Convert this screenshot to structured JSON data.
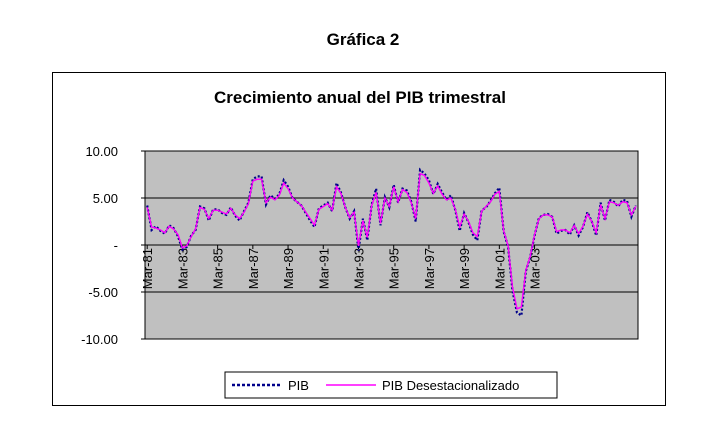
{
  "figure_title": "Gráfica 2",
  "chart_data": {
    "type": "line",
    "title": "Crecimiento anual del PIB trimestral",
    "xlabel": "",
    "ylabel": "",
    "ylim": [
      -10,
      10
    ],
    "yticks": [
      10,
      5,
      0,
      -5,
      -10
    ],
    "ytick_labels": [
      "10.00",
      "5.00",
      "-",
      "-5.00",
      "-10.00"
    ],
    "xtick_labels": [
      "Mar-81",
      "Mar-83",
      "Mar-85",
      "Mar-87",
      "Mar-89",
      "Mar-91",
      "Mar-93",
      "Mar-95",
      "Mar-97",
      "Mar-99",
      "Mar-01",
      "Mar-03"
    ],
    "x_start": "Mar-81",
    "x_end": "Dec-04",
    "frequency": "quarterly",
    "grid": "horizontal",
    "legend_position": "bottom",
    "series": [
      {
        "name": "PIB",
        "color": "#00008b",
        "style": "dotted",
        "values": [
          4.2,
          1.6,
          2.0,
          1.5,
          1.2,
          2.1,
          1.8,
          0.9,
          -0.5,
          -0.2,
          1.0,
          1.6,
          4.1,
          3.9,
          2.6,
          3.8,
          3.8,
          3.4,
          3.2,
          4.0,
          3.1,
          2.6,
          3.6,
          4.5,
          7.0,
          7.3,
          7.3,
          4.3,
          5.3,
          4.9,
          5.4,
          6.9,
          6.2,
          5.0,
          4.6,
          4.2,
          3.4,
          2.6,
          1.9,
          3.9,
          4.2,
          4.5,
          3.6,
          6.6,
          5.6,
          4.0,
          2.8,
          3.6,
          -0.6,
          2.8,
          0.5,
          4.3,
          6.0,
          2.1,
          5.1,
          4.0,
          6.4,
          4.5,
          6.0,
          5.8,
          4.6,
          2.5,
          8.0,
          7.6,
          6.9,
          5.4,
          6.5,
          5.6,
          4.8,
          5.3,
          3.7,
          1.5,
          3.4,
          2.4,
          1.1,
          0.5,
          3.7,
          4.0,
          4.7,
          5.5,
          6.1,
          1.4,
          -0.2,
          -4.9,
          -7.2,
          -7.5,
          -2.8,
          -1.3,
          1.0,
          2.9,
          3.2,
          3.3,
          3.0,
          1.2,
          1.5,
          1.6,
          1.1,
          2.1,
          1.0,
          1.9,
          3.5,
          2.5,
          1.0,
          4.5,
          2.6,
          4.8,
          4.6,
          4.1,
          4.8,
          4.7,
          3.0,
          4.2
        ]
      },
      {
        "name": "PIB Desestacionalizado",
        "color": "#ff00ff",
        "style": "solid",
        "values": [
          4.0,
          1.9,
          1.8,
          1.6,
          1.3,
          2.0,
          1.7,
          1.1,
          -0.3,
          -0.1,
          0.9,
          1.7,
          4.0,
          3.8,
          2.8,
          3.7,
          3.7,
          3.5,
          3.3,
          3.9,
          3.2,
          2.8,
          3.5,
          4.4,
          6.8,
          7.0,
          7.0,
          4.5,
          5.1,
          4.8,
          5.3,
          6.6,
          6.0,
          5.0,
          4.6,
          4.2,
          3.5,
          2.8,
          2.1,
          3.8,
          4.1,
          4.4,
          3.7,
          6.2,
          5.5,
          4.0,
          2.9,
          3.5,
          -0.1,
          2.6,
          0.8,
          4.2,
          5.6,
          2.3,
          5.0,
          4.1,
          6.2,
          4.6,
          5.9,
          5.6,
          4.5,
          2.8,
          7.6,
          7.4,
          6.6,
          5.5,
          6.3,
          5.4,
          4.8,
          5.0,
          3.8,
          1.9,
          3.3,
          2.5,
          1.3,
          0.9,
          3.6,
          4.1,
          4.6,
          5.4,
          5.7,
          1.5,
          -0.1,
          -4.5,
          -6.8,
          -6.6,
          -2.7,
          -1.2,
          1.1,
          2.8,
          3.2,
          3.2,
          3.0,
          1.4,
          1.6,
          1.6,
          1.3,
          2.1,
          1.2,
          2.0,
          3.3,
          2.5,
          1.3,
          4.3,
          2.8,
          4.6,
          4.5,
          4.2,
          4.6,
          4.5,
          3.2,
          4.1
        ]
      }
    ]
  }
}
